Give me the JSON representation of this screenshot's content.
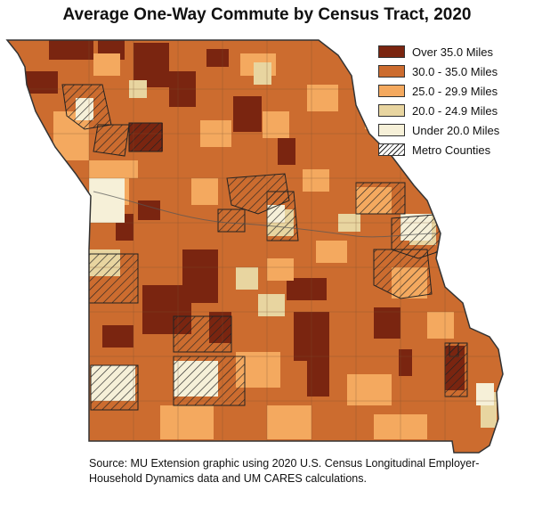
{
  "title": "Average One-Way Commute by Census Tract, 2020",
  "legend": [
    {
      "label": "Over 35.0 Miles",
      "color": "#7a2510"
    },
    {
      "label": "30.0 - 35.0 Miles",
      "color": "#cc6c2f"
    },
    {
      "label": "25.0 - 29.9 Miles",
      "color": "#f4a95f"
    },
    {
      "label": "20.0 - 24.9 Miles",
      "color": "#e8d5a0"
    },
    {
      "label": "Under 20.0 Miles",
      "color": "#f6f0d8"
    },
    {
      "label": "Metro Counties",
      "pattern": "hatch"
    }
  ],
  "source": "Source: MU Extension graphic using 2020 U.S. Census Longitudinal Employer-Household Dynamics data and UM CARES calculations."
}
